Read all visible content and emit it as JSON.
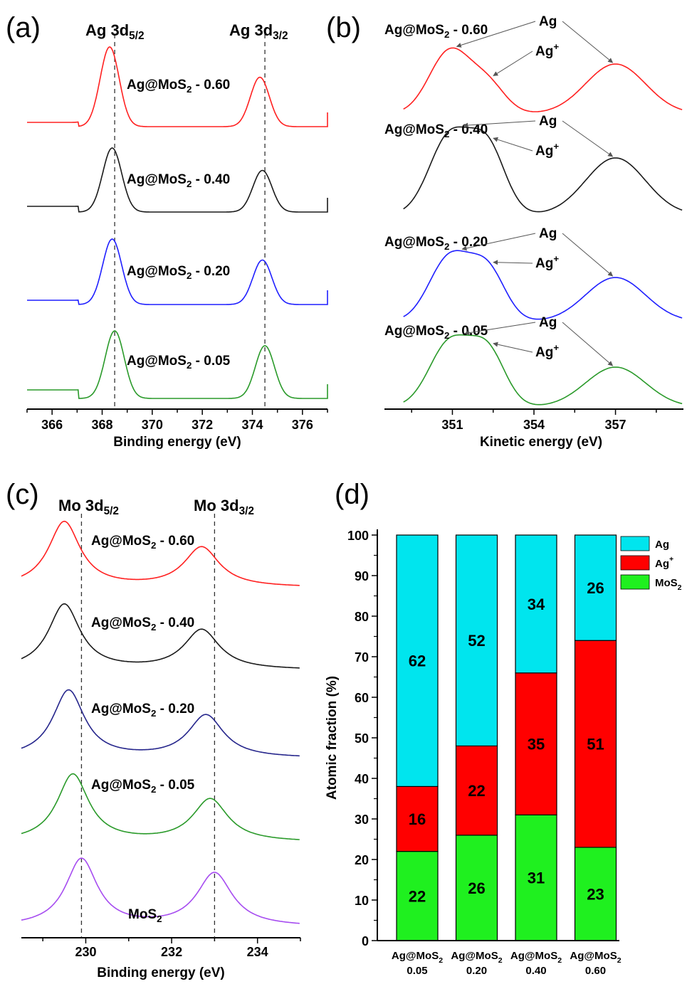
{
  "panel_labels": [
    "(a)",
    "(b)",
    "(c)",
    "(d)"
  ],
  "colors": {
    "s060": "#ff2020",
    "s040": "#1a1a1a",
    "s020": "#1f1fff",
    "s005": "#2a9a2a",
    "s020c": "#26268c",
    "mos2": "#a64cf0",
    "ag": "#00e5ee",
    "agp": "#ff0000",
    "mos2bar": "#1ff01f"
  },
  "chart_data": [
    {
      "panel": "(a)",
      "type": "line",
      "xlabel": "Binding energy (eV)",
      "xlim": [
        365,
        377
      ],
      "xticks": [
        366,
        368,
        370,
        372,
        374,
        376
      ],
      "peak_labels": [
        {
          "main": "Ag 3d",
          "sub": "5/2",
          "x": 368.5
        },
        {
          "main": "Ag 3d",
          "sub": "3/2",
          "x": 374.5
        }
      ],
      "series": [
        {
          "name": "Ag@MoS2 - 0.60",
          "label_main": "Ag@MoS",
          "label_sub": "2",
          "label_rest": " - 0.60",
          "color": "#ff2020",
          "peaks": [
            368.3,
            374.3
          ],
          "heights": [
            1.0,
            0.62
          ]
        },
        {
          "name": "Ag@MoS2 - 0.40",
          "label_main": "Ag@MoS",
          "label_sub": "2",
          "label_rest": " - 0.40",
          "color": "#1a1a1a",
          "peaks": [
            368.4,
            374.4
          ],
          "heights": [
            1.0,
            0.65
          ]
        },
        {
          "name": "Ag@MoS2 - 0.20",
          "label_main": "Ag@MoS",
          "label_sub": "2",
          "label_rest": " - 0.20",
          "color": "#1f1fff",
          "peaks": [
            368.4,
            374.4
          ],
          "heights": [
            1.0,
            0.68
          ]
        },
        {
          "name": "Ag@MoS2 - 0.05",
          "label_main": "Ag@MoS",
          "label_sub": "2",
          "label_rest": " - 0.05",
          "color": "#2a9a2a",
          "peaks": [
            368.5,
            374.5
          ],
          "heights": [
            1.0,
            0.78
          ]
        }
      ]
    },
    {
      "panel": "(b)",
      "type": "line",
      "xlabel": "Kinetic energy (eV)",
      "xlim": [
        348.5,
        359.5
      ],
      "xticks": [
        351,
        354,
        357
      ],
      "annotations": [
        "Ag",
        "Ag"
      ],
      "annotation_sup": "+",
      "series": [
        {
          "name": "Ag@MoS2 - 0.60",
          "label_main": "Ag@MoS",
          "label_sub": "2",
          "label_rest": " - 0.60",
          "color": "#ff2020"
        },
        {
          "name": "Ag@MoS2 - 0.40",
          "label_main": "Ag@MoS",
          "label_sub": "2",
          "label_rest": " - 0.40",
          "color": "#1a1a1a"
        },
        {
          "name": "Ag@MoS2 - 0.20",
          "label_main": "Ag@MoS",
          "label_sub": "2",
          "label_rest": " - 0.20",
          "color": "#1f1fff"
        },
        {
          "name": "Ag@MoS2 - 0.05",
          "label_main": "Ag@MoS",
          "label_sub": "2",
          "label_rest": " - 0.05",
          "color": "#2a9a2a"
        }
      ]
    },
    {
      "panel": "(c)",
      "type": "line",
      "xlabel": "Binding energy (eV)",
      "xlim": [
        228.5,
        235
      ],
      "xticks": [
        230,
        232,
        234
      ],
      "peak_labels": [
        {
          "main": "Mo 3d",
          "sub": "5/2",
          "x": 229.9
        },
        {
          "main": "Mo 3d",
          "sub": "3/2",
          "x": 233.0
        }
      ],
      "series": [
        {
          "name": "Ag@MoS2 - 0.60",
          "label_main": "Ag@MoS",
          "label_sub": "2",
          "label_rest": " - 0.60",
          "color": "#ff2020",
          "peaks": [
            229.5,
            232.7
          ]
        },
        {
          "name": "Ag@MoS2 - 0.40",
          "label_main": "Ag@MoS",
          "label_sub": "2",
          "label_rest": " - 0.40",
          "color": "#1a1a1a",
          "peaks": [
            229.5,
            232.7
          ]
        },
        {
          "name": "Ag@MoS2 - 0.20",
          "label_main": "Ag@MoS",
          "label_sub": "2",
          "label_rest": " - 0.20",
          "color": "#26268c",
          "peaks": [
            229.6,
            232.8
          ]
        },
        {
          "name": "Ag@MoS2 - 0.05",
          "label_main": "Ag@MoS",
          "label_sub": "2",
          "label_rest": " - 0.05",
          "color": "#2a9a2a",
          "peaks": [
            229.7,
            232.9
          ]
        },
        {
          "name": "MoS2",
          "label_main": "MoS",
          "label_sub": "2",
          "label_rest": "",
          "color": "#a64cf0",
          "peaks": [
            229.9,
            233.0
          ]
        }
      ]
    },
    {
      "panel": "(d)",
      "type": "bar",
      "stacked": true,
      "ylabel": "Atomic fraction (%)",
      "ylim": [
        0,
        100
      ],
      "yticks": [
        0,
        10,
        20,
        30,
        40,
        50,
        60,
        70,
        80,
        90,
        100
      ],
      "categories": [
        {
          "main": "Ag@MoS",
          "sub": "2",
          "value": "0.05"
        },
        {
          "main": "Ag@MoS",
          "sub": "2",
          "value": "0.20"
        },
        {
          "main": "Ag@MoS",
          "sub": "2",
          "value": "0.40"
        },
        {
          "main": "Ag@MoS",
          "sub": "2",
          "value": "0.60"
        }
      ],
      "series": [
        {
          "name": "MoS2",
          "legend_main": "MoS",
          "legend_sub": "2",
          "legend_sup": "",
          "color": "#1ff01f",
          "values": [
            22,
            26,
            31,
            23
          ]
        },
        {
          "name": "Ag+",
          "legend_main": "Ag",
          "legend_sub": "",
          "legend_sup": "+",
          "color": "#ff0000",
          "values": [
            16,
            22,
            35,
            51
          ]
        },
        {
          "name": "Ag",
          "legend_main": "Ag",
          "legend_sub": "",
          "legend_sup": "",
          "color": "#00e5ee",
          "values": [
            62,
            52,
            34,
            26
          ]
        }
      ],
      "legend_position": "top-right"
    }
  ]
}
